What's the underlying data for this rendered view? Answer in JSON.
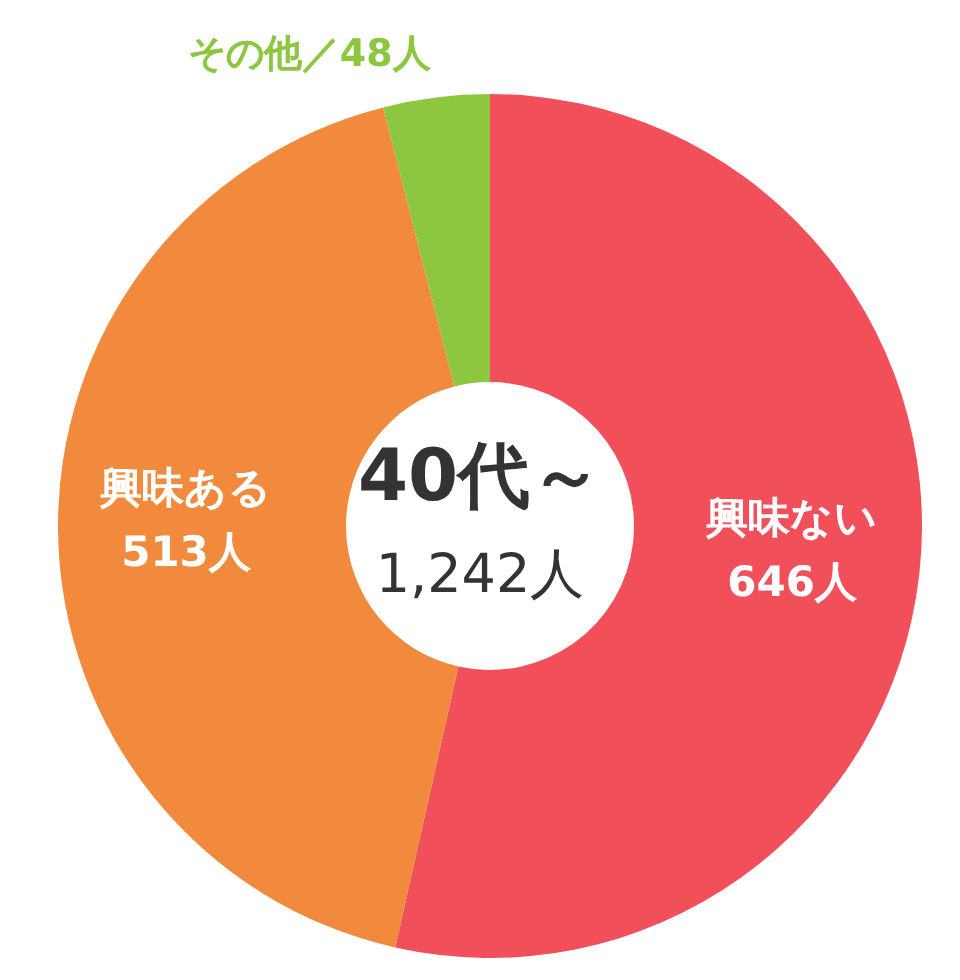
{
  "chart_data": {
    "type": "donut",
    "title": "40代～",
    "subtitle": "1,242人",
    "categories": [
      "興味ない",
      "興味ある",
      "その他"
    ],
    "values": [
      646,
      513,
      48
    ],
    "colors": [
      "#f1505a",
      "#f28a3d",
      "#8dc63f"
    ],
    "value_labels": [
      "646人",
      "513人",
      "／48人"
    ],
    "legend": false
  }
}
